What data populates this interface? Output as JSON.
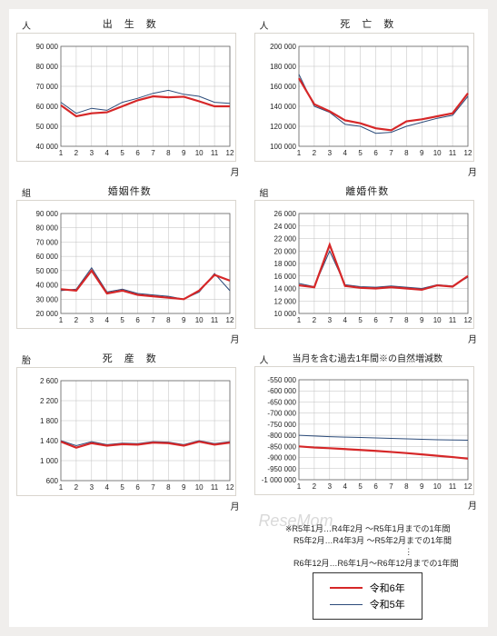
{
  "colors": {
    "series_r6": "#d62728",
    "series_r5": "#2b4b7a",
    "grid": "#bfbfbf",
    "axis": "#666666",
    "pale_border": "#d9d5ce",
    "text": "#222222",
    "bg": "#ffffff"
  },
  "line_widths": {
    "r6": 2.2,
    "r5": 1.0
  },
  "x_categories": [
    "1",
    "2",
    "3",
    "4",
    "5",
    "6",
    "7",
    "8",
    "9",
    "10",
    "11",
    "12"
  ],
  "x_axis_label": "月",
  "tick_fontsize": 8,
  "title_fontsize": 11,
  "charts": [
    {
      "id": "births",
      "title": "出　生　数",
      "y_unit": "人",
      "ylim": [
        40000,
        90000
      ],
      "ytick_step": 10000,
      "ytick_fmt": "space",
      "r6": [
        60500,
        55000,
        56500,
        57000,
        60000,
        63000,
        65000,
        64500,
        64800,
        62500,
        60000,
        60000
      ],
      "r5": [
        62000,
        56500,
        59000,
        58000,
        62000,
        64000,
        66500,
        68000,
        66000,
        65000,
        62000,
        61500
      ]
    },
    {
      "id": "deaths",
      "title": "死　亡　数",
      "y_unit": "人",
      "ylim": [
        100000,
        200000
      ],
      "ytick_step": 20000,
      "ytick_fmt": "space",
      "r6": [
        168000,
        142000,
        135000,
        126000,
        123000,
        118000,
        116000,
        125000,
        127000,
        130000,
        133000,
        153000
      ],
      "r5": [
        172000,
        140000,
        134000,
        122000,
        120000,
        113000,
        114000,
        120000,
        124000,
        128000,
        131000,
        150000
      ]
    },
    {
      "id": "marriages",
      "title": "婚姻件数",
      "y_unit": "組",
      "ylim": [
        20000,
        90000
      ],
      "ytick_step": 10000,
      "ytick_fmt": "space",
      "r6": [
        37000,
        36000,
        50000,
        34000,
        36000,
        33000,
        32000,
        31000,
        30000,
        36000,
        47000,
        43000
      ],
      "r5": [
        36000,
        37000,
        52000,
        35000,
        37000,
        34000,
        33000,
        32000,
        30000,
        35000,
        48000,
        36000
      ]
    },
    {
      "id": "divorces",
      "title": "離婚件数",
      "y_unit": "組",
      "ylim": [
        10000,
        26000
      ],
      "ytick_step": 2000,
      "ytick_fmt": "space",
      "r6": [
        14500,
        14200,
        21000,
        14400,
        14100,
        14000,
        14200,
        14000,
        13800,
        14500,
        14300,
        16000
      ],
      "r5": [
        14800,
        14300,
        20000,
        14600,
        14300,
        14200,
        14400,
        14200,
        14000,
        14600,
        14400,
        15800
      ]
    },
    {
      "id": "stillbirths",
      "title": "死　産　数",
      "y_unit": "胎",
      "ylim": [
        600,
        2600
      ],
      "ytick_step": 400,
      "ytick_fmt": "space",
      "r6": [
        1380,
        1260,
        1350,
        1300,
        1330,
        1320,
        1360,
        1350,
        1300,
        1380,
        1320,
        1360
      ],
      "r5": [
        1400,
        1300,
        1380,
        1320,
        1350,
        1340,
        1380,
        1370,
        1320,
        1400,
        1340,
        1380
      ]
    },
    {
      "id": "natural",
      "title": "当月を含む過去1年間※の自然増減数",
      "title_small": true,
      "y_unit": "人",
      "ylim": [
        -1000000,
        -550000
      ],
      "ytick_step": 50000,
      "ytick_fmt": "neg_space",
      "r6": [
        -850000,
        -855000,
        -858000,
        -862000,
        -866000,
        -870000,
        -875000,
        -880000,
        -886000,
        -892000,
        -898000,
        -905000
      ],
      "r5": [
        -800000,
        -803000,
        -806000,
        -808000,
        -810000,
        -812000,
        -814000,
        -816000,
        -818000,
        -820000,
        -821000,
        -822000
      ]
    }
  ],
  "footnote": {
    "line1": "※R5年1月…R4年2月 ～R5年1月までの1年間",
    "line2": "　R5年2月…R4年3月 ～R5年2月までの1年間",
    "line3": "　　　　　　　　　⋮",
    "line4": "　R6年12月…R6年1月～R6年12月までの1年間"
  },
  "legend": {
    "r6_label": "令和6年",
    "r5_label": "令和5年"
  },
  "watermark": "ReseMom"
}
